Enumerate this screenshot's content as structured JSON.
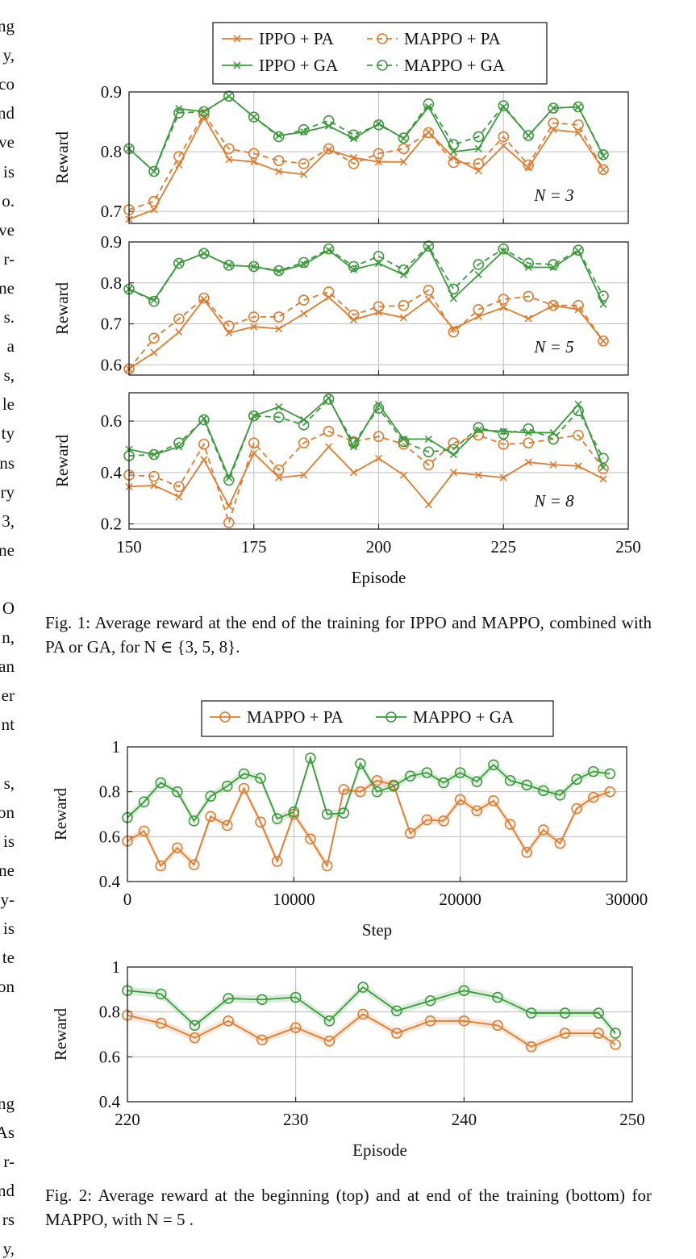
{
  "left_column_fragments": [
    "ng",
    "y,",
    "co",
    "nd",
    "ve",
    "is",
    "o.",
    "ve",
    "r-",
    "ne",
    "s.",
    "a",
    "s,",
    "le",
    "ty",
    "ns",
    "ry",
    "3,",
    "ne",
    "",
    "O",
    "n,",
    "an",
    "er",
    "nt",
    "",
    "s,",
    "on",
    "is",
    "ne",
    "y-",
    "is",
    "te",
    "on",
    "",
    "",
    "",
    "ng",
    "As",
    "r-",
    "nd",
    "rs",
    "y,"
  ],
  "colors": {
    "pa": "#e07b2e",
    "ga": "#3c9a3c",
    "grid": "#bdbdbd"
  },
  "fig1": {
    "legend": [
      "IPPO + PA",
      "MAPPO + PA",
      "IPPO + GA",
      "MAPPO + GA"
    ],
    "ylabel": "Reward",
    "xlabel": "Episode",
    "xticks": [
      "150",
      "175",
      "200",
      "225",
      "250"
    ],
    "panels": [
      {
        "annotation": "N = 3",
        "yticks": [
          "0.7",
          "0.8",
          "0.9"
        ]
      },
      {
        "annotation": "N = 5",
        "yticks": [
          "0.6",
          "0.7",
          "0.8",
          "0.9"
        ]
      },
      {
        "annotation": "N = 8",
        "yticks": [
          "0.2",
          "0.4",
          "0.6"
        ]
      }
    ],
    "caption_label": "Fig. 1:",
    "caption_text": "Average reward at the end of the training for IPPO and MAPPO, combined with PA or GA, for N ∈ {3, 5, 8}."
  },
  "fig2": {
    "legend": [
      "MAPPO + PA",
      "MAPPO + GA"
    ],
    "top": {
      "ylabel": "Reward",
      "xlabel": "Step",
      "xticks": [
        "0",
        "10000",
        "20000",
        "30000"
      ],
      "yticks": [
        "0.4",
        "0.6",
        "0.8",
        "1"
      ]
    },
    "bottom": {
      "ylabel": "Reward",
      "xlabel": "Episode",
      "xticks": [
        "220",
        "230",
        "240",
        "250"
      ],
      "yticks": [
        "0.4",
        "0.6",
        "0.8",
        "1"
      ]
    },
    "caption_label": "Fig. 2:",
    "caption_text": "Average reward at the beginning (top) and at end of the training (bottom) for MAPPO, with N = 5 ."
  },
  "chart_data": [
    {
      "type": "line",
      "title": "",
      "xlabel": "",
      "ylabel": "Reward",
      "annotation": "N = 3",
      "xlim": [
        150,
        250
      ],
      "ylim": [
        0.68,
        0.9
      ],
      "x": [
        150,
        155,
        160,
        165,
        170,
        175,
        180,
        185,
        190,
        195,
        200,
        205,
        210,
        215,
        220,
        225,
        230,
        235,
        240,
        245
      ],
      "series": [
        {
          "name": "IPPO + PA",
          "values": [
            0.687,
            0.703,
            0.778,
            0.858,
            0.787,
            0.783,
            0.767,
            0.762,
            0.803,
            0.79,
            0.783,
            0.783,
            0.833,
            0.79,
            0.768,
            0.81,
            0.773,
            0.837,
            0.832,
            0.77
          ]
        },
        {
          "name": "MAPPO + PA",
          "values": [
            0.703,
            0.717,
            0.792,
            0.862,
            0.805,
            0.797,
            0.785,
            0.78,
            0.805,
            0.78,
            0.797,
            0.805,
            0.832,
            0.782,
            0.78,
            0.825,
            0.778,
            0.848,
            0.845,
            0.77
          ]
        },
        {
          "name": "IPPO + GA",
          "values": [
            0.805,
            0.767,
            0.872,
            0.867,
            0.893,
            0.858,
            0.827,
            0.833,
            0.843,
            0.822,
            0.847,
            0.822,
            0.875,
            0.8,
            0.805,
            0.875,
            0.827,
            0.873,
            0.875,
            0.793
          ]
        },
        {
          "name": "MAPPO + GA",
          "values": [
            0.805,
            0.767,
            0.865,
            0.867,
            0.893,
            0.858,
            0.825,
            0.837,
            0.852,
            0.828,
            0.845,
            0.823,
            0.88,
            0.812,
            0.825,
            0.877,
            0.827,
            0.873,
            0.875,
            0.795
          ]
        }
      ]
    },
    {
      "type": "line",
      "title": "",
      "xlabel": "",
      "ylabel": "Reward",
      "annotation": "N = 5",
      "xlim": [
        150,
        250
      ],
      "ylim": [
        0.575,
        0.9
      ],
      "x": [
        150,
        155,
        160,
        165,
        170,
        175,
        180,
        185,
        190,
        195,
        200,
        205,
        210,
        215,
        220,
        225,
        230,
        235,
        240,
        245
      ],
      "series": [
        {
          "name": "IPPO + PA",
          "values": [
            0.59,
            0.63,
            0.68,
            0.76,
            0.678,
            0.693,
            0.688,
            0.725,
            0.765,
            0.71,
            0.728,
            0.715,
            0.76,
            0.688,
            0.718,
            0.74,
            0.713,
            0.745,
            0.735,
            0.658
          ]
        },
        {
          "name": "MAPPO + PA",
          "values": [
            0.59,
            0.665,
            0.712,
            0.763,
            0.695,
            0.717,
            0.717,
            0.758,
            0.778,
            0.722,
            0.742,
            0.745,
            0.782,
            0.68,
            0.735,
            0.76,
            0.767,
            0.745,
            0.745,
            0.658
          ]
        },
        {
          "name": "IPPO + GA",
          "values": [
            0.785,
            0.758,
            0.848,
            0.872,
            0.843,
            0.84,
            0.828,
            0.845,
            0.88,
            0.833,
            0.848,
            0.82,
            0.887,
            0.762,
            0.82,
            0.878,
            0.838,
            0.838,
            0.878,
            0.748
          ]
        },
        {
          "name": "MAPPO + GA",
          "values": [
            0.785,
            0.755,
            0.848,
            0.872,
            0.843,
            0.84,
            0.83,
            0.85,
            0.883,
            0.84,
            0.865,
            0.832,
            0.89,
            0.785,
            0.845,
            0.883,
            0.848,
            0.845,
            0.88,
            0.768
          ]
        }
      ]
    },
    {
      "type": "line",
      "title": "",
      "xlabel": "Episode",
      "ylabel": "Reward",
      "annotation": "N = 8",
      "xlim": [
        150,
        250
      ],
      "ylim": [
        0.18,
        0.71
      ],
      "x": [
        150,
        155,
        160,
        165,
        170,
        175,
        180,
        185,
        190,
        195,
        200,
        205,
        210,
        215,
        220,
        225,
        230,
        235,
        240,
        245
      ],
      "series": [
        {
          "name": "IPPO + PA",
          "values": [
            0.345,
            0.35,
            0.305,
            0.45,
            0.27,
            0.475,
            0.38,
            0.39,
            0.5,
            0.4,
            0.455,
            0.39,
            0.275,
            0.4,
            0.39,
            0.38,
            0.44,
            0.43,
            0.425,
            0.375
          ]
        },
        {
          "name": "MAPPO + PA",
          "values": [
            0.39,
            0.385,
            0.345,
            0.51,
            0.205,
            0.515,
            0.41,
            0.515,
            0.56,
            0.52,
            0.54,
            0.51,
            0.43,
            0.515,
            0.545,
            0.51,
            0.515,
            0.53,
            0.545,
            0.415
          ]
        },
        {
          "name": "IPPO + GA",
          "values": [
            0.49,
            0.47,
            0.5,
            0.61,
            0.38,
            0.62,
            0.655,
            0.605,
            0.69,
            0.5,
            0.665,
            0.53,
            0.53,
            0.47,
            0.565,
            0.56,
            0.555,
            0.555,
            0.665,
            0.42
          ]
        },
        {
          "name": "MAPPO + GA",
          "values": [
            0.465,
            0.47,
            0.515,
            0.605,
            0.37,
            0.62,
            0.615,
            0.585,
            0.685,
            0.515,
            0.65,
            0.52,
            0.48,
            0.49,
            0.575,
            0.55,
            0.57,
            0.53,
            0.64,
            0.455
          ]
        }
      ]
    },
    {
      "type": "line",
      "title": "",
      "xlabel": "Step",
      "ylabel": "Reward",
      "xlim": [
        0,
        30000
      ],
      "ylim": [
        0.4,
        1.0
      ],
      "x": [
        0,
        1000,
        2000,
        3000,
        4000,
        5000,
        6000,
        7000,
        8000,
        9000,
        10000,
        11000,
        12000,
        13000,
        14000,
        15000,
        16000,
        17000,
        18000,
        19000,
        20000,
        21000,
        22000,
        23000,
        24000,
        25000,
        26000,
        27000,
        28000,
        29000
      ],
      "series": [
        {
          "name": "MAPPO + PA",
          "values": [
            0.58,
            0.625,
            0.47,
            0.55,
            0.475,
            0.69,
            0.65,
            0.815,
            0.665,
            0.49,
            0.7,
            0.59,
            0.47,
            0.81,
            0.8,
            0.85,
            0.83,
            0.615,
            0.675,
            0.67,
            0.765,
            0.715,
            0.76,
            0.655,
            0.53,
            0.63,
            0.57,
            0.725,
            0.775,
            0.8
          ]
        },
        {
          "name": "MAPPO + GA",
          "values": [
            0.685,
            0.755,
            0.84,
            0.8,
            0.67,
            0.78,
            0.825,
            0.88,
            0.86,
            0.68,
            0.71,
            0.95,
            0.7,
            0.705,
            0.925,
            0.8,
            0.825,
            0.87,
            0.885,
            0.84,
            0.885,
            0.845,
            0.92,
            0.85,
            0.83,
            0.805,
            0.785,
            0.855,
            0.89,
            0.88
          ]
        }
      ]
    },
    {
      "type": "line",
      "title": "",
      "xlabel": "Episode",
      "ylabel": "Reward",
      "xlim": [
        220,
        250
      ],
      "ylim": [
        0.4,
        1.0
      ],
      "x": [
        220,
        222,
        224,
        226,
        228,
        230,
        232,
        234,
        236,
        238,
        240,
        242,
        244,
        246,
        248,
        249
      ],
      "series": [
        {
          "name": "MAPPO + PA",
          "values": [
            0.785,
            0.75,
            0.685,
            0.76,
            0.675,
            0.73,
            0.67,
            0.79,
            0.705,
            0.76,
            0.76,
            0.74,
            0.645,
            0.705,
            0.705,
            0.655
          ]
        },
        {
          "name": "MAPPO + GA",
          "values": [
            0.895,
            0.88,
            0.74,
            0.86,
            0.855,
            0.865,
            0.76,
            0.91,
            0.805,
            0.85,
            0.895,
            0.865,
            0.795,
            0.795,
            0.795,
            0.705
          ]
        }
      ]
    }
  ]
}
